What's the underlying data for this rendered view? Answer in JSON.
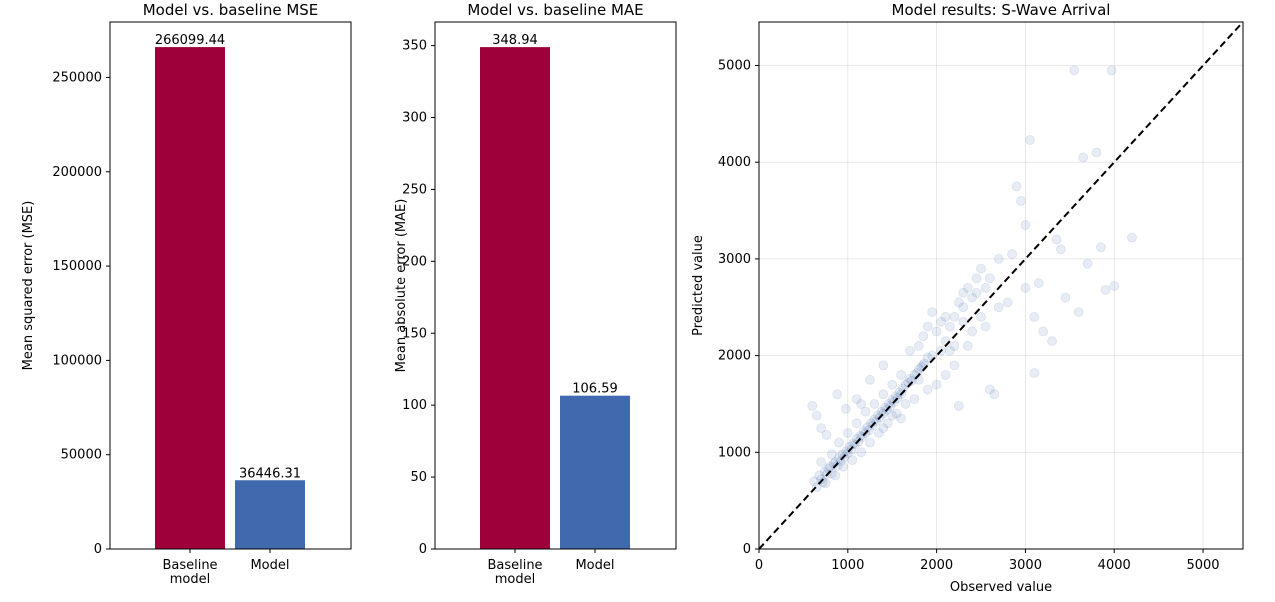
{
  "colors": {
    "baseline": "#9e003a",
    "model": "#4169ae",
    "scatter": "#4169ae",
    "diagonal": "#000000"
  },
  "chart_data": [
    {
      "type": "bar",
      "title": "Model vs. baseline MSE",
      "xlabel": "",
      "ylabel": "Mean squared error (MSE)",
      "categories": [
        [
          "Baseline",
          "model"
        ],
        [
          "Model"
        ]
      ],
      "values": [
        266099.44,
        36446.31
      ],
      "data_labels": [
        "266099.44",
        "36446.31"
      ],
      "ylim": [
        0,
        279404
      ],
      "yticks": [
        0,
        50000,
        100000,
        150000,
        200000,
        250000
      ],
      "ytick_labels": [
        "0",
        "50000",
        "100000",
        "150000",
        "200000",
        "250000"
      ],
      "bar_colors": [
        "baseline",
        "model"
      ],
      "grid": false
    },
    {
      "type": "bar",
      "title": "Model vs. baseline MAE",
      "xlabel": "",
      "ylabel": "Mean absolute error (MAE)",
      "categories": [
        [
          "Baseline",
          "model"
        ],
        [
          "Model"
        ]
      ],
      "values": [
        348.94,
        106.59
      ],
      "data_labels": [
        "348.94",
        "106.59"
      ],
      "ylim": [
        0,
        366.4
      ],
      "yticks": [
        0,
        50,
        100,
        150,
        200,
        250,
        300,
        350
      ],
      "ytick_labels": [
        "0",
        "50",
        "100",
        "150",
        "200",
        "250",
        "300",
        "350"
      ],
      "bar_colors": [
        "baseline",
        "model"
      ],
      "grid": false
    },
    {
      "type": "scatter",
      "title": "Model results: S-Wave Arrival",
      "xlabel": "Observed value",
      "ylabel": "Predicted value",
      "xlim": [
        0,
        5450
      ],
      "ylim": [
        0,
        5450
      ],
      "xticks": [
        0,
        1000,
        2000,
        3000,
        4000,
        5000
      ],
      "yticks": [
        0,
        1000,
        2000,
        3000,
        4000,
        5000
      ],
      "xtick_labels": [
        "0",
        "1000",
        "2000",
        "3000",
        "4000",
        "5000"
      ],
      "ytick_labels": [
        "0",
        "1000",
        "2000",
        "3000",
        "4000",
        "5000"
      ],
      "grid": true,
      "reference_line": "y = x (dashed)",
      "points": [
        [
          620,
          700
        ],
        [
          650,
          640
        ],
        [
          680,
          760
        ],
        [
          700,
          720
        ],
        [
          720,
          690
        ],
        [
          740,
          800
        ],
        [
          760,
          770
        ],
        [
          780,
          830
        ],
        [
          800,
          850
        ],
        [
          820,
          780
        ],
        [
          840,
          880
        ],
        [
          860,
          900
        ],
        [
          880,
          860
        ],
        [
          900,
          940
        ],
        [
          920,
          910
        ],
        [
          940,
          980
        ],
        [
          960,
          950
        ],
        [
          980,
          1010
        ],
        [
          1000,
          990
        ],
        [
          1020,
          1060
        ],
        [
          1040,
          1030
        ],
        [
          1060,
          1090
        ],
        [
          1080,
          1080
        ],
        [
          1100,
          1140
        ],
        [
          1120,
          1110
        ],
        [
          1140,
          1170
        ],
        [
          1160,
          1160
        ],
        [
          1180,
          1220
        ],
        [
          1200,
          1200
        ],
        [
          1220,
          1260
        ],
        [
          1240,
          1230
        ],
        [
          1260,
          1300
        ],
        [
          1280,
          1280
        ],
        [
          1300,
          1340
        ],
        [
          1320,
          1320
        ],
        [
          1340,
          1380
        ],
        [
          1360,
          1360
        ],
        [
          1380,
          1420
        ],
        [
          1400,
          1400
        ],
        [
          1420,
          1460
        ],
        [
          1440,
          1440
        ],
        [
          1460,
          1500
        ],
        [
          1480,
          1480
        ],
        [
          1500,
          1540
        ],
        [
          1520,
          1520
        ],
        [
          1540,
          1580
        ],
        [
          1560,
          1560
        ],
        [
          1580,
          1620
        ],
        [
          1600,
          1600
        ],
        [
          1620,
          1660
        ],
        [
          1650,
          1700
        ],
        [
          1680,
          1720
        ],
        [
          1700,
          1760
        ],
        [
          1720,
          1740
        ],
        [
          1750,
          1800
        ],
        [
          1780,
          1820
        ],
        [
          1800,
          1860
        ],
        [
          1830,
          1880
        ],
        [
          1860,
          1920
        ],
        [
          1900,
          1980
        ],
        [
          700,
          900
        ],
        [
          750,
          680
        ],
        [
          820,
          980
        ],
        [
          860,
          760
        ],
        [
          900,
          1100
        ],
        [
          950,
          850
        ],
        [
          1000,
          1200
        ],
        [
          1050,
          920
        ],
        [
          1100,
          1300
        ],
        [
          1150,
          1000
        ],
        [
          1200,
          1420
        ],
        [
          1250,
          1100
        ],
        [
          1300,
          1500
        ],
        [
          1350,
          1200
        ],
        [
          1400,
          1600
        ],
        [
          1450,
          1300
        ],
        [
          1500,
          1700
        ],
        [
          1550,
          1400
        ],
        [
          1600,
          1800
        ],
        [
          1650,
          1500
        ],
        [
          600,
          1480
        ],
        [
          650,
          1380
        ],
        [
          700,
          1250
        ],
        [
          760,
          1180
        ],
        [
          880,
          1600
        ],
        [
          980,
          1450
        ],
        [
          1100,
          1550
        ],
        [
          1150,
          1500
        ],
        [
          1250,
          1750
        ],
        [
          1400,
          1900
        ],
        [
          1800,
          2100
        ],
        [
          1850,
          2200
        ],
        [
          1900,
          2300
        ],
        [
          1950,
          2000
        ],
        [
          2000,
          2250
        ],
        [
          2050,
          2050
        ],
        [
          2100,
          2150
        ],
        [
          2150,
          2300
        ],
        [
          2200,
          2100
        ],
        [
          2250,
          2550
        ],
        [
          2300,
          2500
        ],
        [
          2350,
          2700
        ],
        [
          2400,
          2600
        ],
        [
          2450,
          2800
        ],
        [
          2500,
          2400
        ],
        [
          2550,
          2700
        ],
        [
          2600,
          1650
        ],
        [
          2650,
          1600
        ],
        [
          2700,
          2500
        ],
        [
          2800,
          2550
        ],
        [
          2200,
          1900
        ],
        [
          2100,
          1800
        ],
        [
          2000,
          1700
        ],
        [
          1900,
          1650
        ],
        [
          1800,
          1750
        ],
        [
          2300,
          2350
        ],
        [
          2400,
          2250
        ],
        [
          2550,
          2300
        ],
        [
          2600,
          2800
        ],
        [
          2500,
          2900
        ],
        [
          2250,
          1480
        ],
        [
          2100,
          2400
        ],
        [
          2350,
          2100
        ],
        [
          2900,
          3750
        ],
        [
          2950,
          3600
        ],
        [
          3050,
          4230
        ],
        [
          3000,
          2700
        ],
        [
          3100,
          2400
        ],
        [
          3100,
          1820
        ],
        [
          3150,
          2750
        ],
        [
          3200,
          2250
        ],
        [
          3300,
          2150
        ],
        [
          3350,
          3200
        ],
        [
          3400,
          3100
        ],
        [
          3450,
          2600
        ],
        [
          3550,
          4950
        ],
        [
          3600,
          2450
        ],
        [
          3650,
          4050
        ],
        [
          3700,
          2950
        ],
        [
          3800,
          4100
        ],
        [
          3850,
          3120
        ],
        [
          3900,
          2680
        ],
        [
          4000,
          2720
        ],
        [
          4200,
          3220
        ],
        [
          3970,
          4950
        ],
        [
          2700,
          3000
        ],
        [
          2850,
          3050
        ],
        [
          3000,
          3350
        ],
        [
          2200,
          2400
        ],
        [
          1700,
          2050
        ],
        [
          1750,
          1550
        ],
        [
          1850,
          1900
        ],
        [
          1950,
          2450
        ],
        [
          2050,
          2350
        ],
        [
          2150,
          2050
        ],
        [
          2300,
          2650
        ],
        [
          2450,
          2650
        ],
        [
          1600,
          1350
        ],
        [
          1500,
          1380
        ],
        [
          1400,
          1250
        ]
      ]
    }
  ]
}
